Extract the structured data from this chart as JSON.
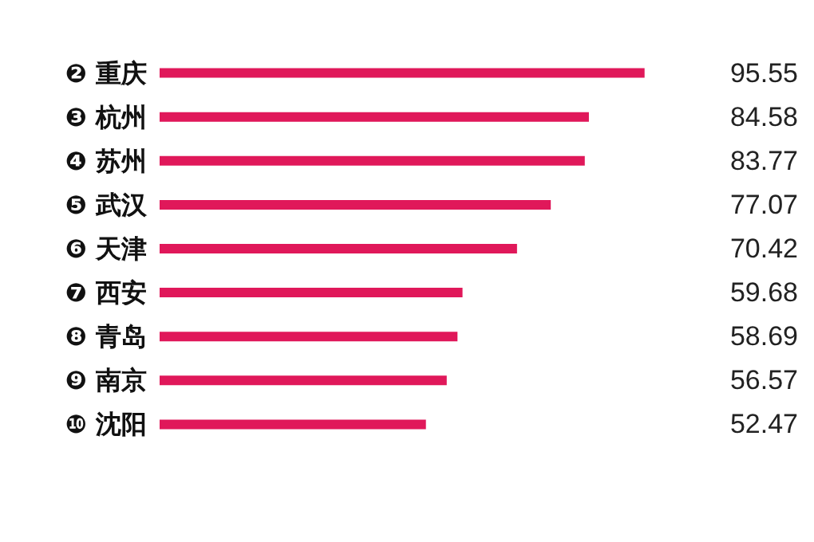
{
  "chart_data": {
    "type": "bar",
    "orientation": "horizontal",
    "categories": [
      "❷ 重庆",
      "❸ 杭州",
      "❹ 苏州",
      "❺ 武汉",
      "❻ 天津",
      "❼ 西安",
      "❽ 青岛",
      "❾ 南京",
      "❿ 沈阳"
    ],
    "values": [
      95.55,
      84.58,
      83.77,
      77.07,
      70.42,
      59.68,
      58.69,
      56.57,
      52.47
    ],
    "color": "#e0185a",
    "data_labels": true,
    "tick_labels": "y"
  }
}
